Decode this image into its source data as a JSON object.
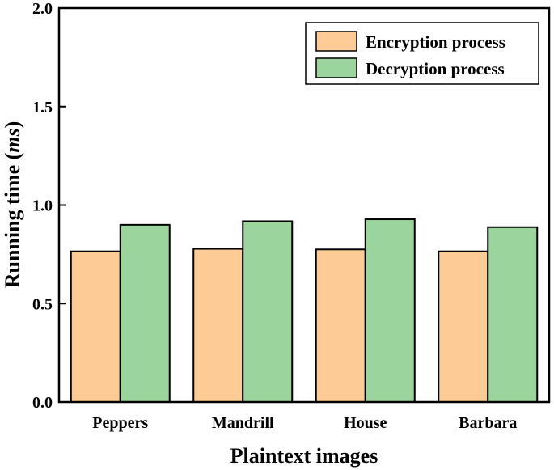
{
  "chart_data": {
    "type": "bar",
    "categories": [
      "Peppers",
      "Mandrill",
      "House",
      "Barbara"
    ],
    "series": [
      {
        "name": "Encryption process",
        "values": [
          0.765,
          0.778,
          0.775,
          0.765
        ],
        "color": "#FDCC96"
      },
      {
        "name": "Decryption process",
        "values": [
          0.9,
          0.918,
          0.928,
          0.888
        ],
        "color": "#9BD49C"
      }
    ],
    "xlabel": "Plaintext images",
    "ylabel_prefix": "Running time (",
    "ylabel_unit": "ms",
    "ylabel_suffix": ")",
    "ylim": [
      0.0,
      2.0
    ],
    "yticks": [
      "0.0",
      "0.5",
      "1.0",
      "1.5",
      "2.0"
    ],
    "ytick_values": [
      0.0,
      0.5,
      1.0,
      1.5,
      2.0
    ],
    "legend_position": "top-right",
    "grid": false
  }
}
